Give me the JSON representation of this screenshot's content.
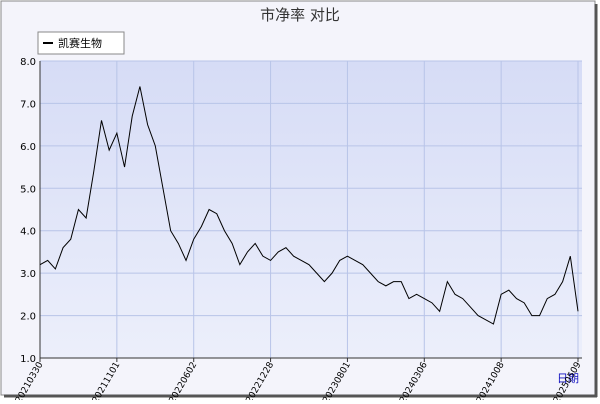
{
  "chart_data": {
    "type": "line",
    "title": "市净率 对比",
    "x_label": "日期",
    "categories": [
      "20210330",
      null,
      null,
      null,
      null,
      null,
      null,
      null,
      null,
      null,
      "20211101",
      null,
      null,
      null,
      null,
      null,
      null,
      null,
      null,
      null,
      "20220602",
      null,
      null,
      null,
      null,
      null,
      null,
      null,
      null,
      null,
      "20221228",
      null,
      null,
      null,
      null,
      null,
      null,
      null,
      null,
      null,
      "20230801",
      null,
      null,
      null,
      null,
      null,
      null,
      null,
      null,
      null,
      "20240306",
      null,
      null,
      null,
      null,
      null,
      null,
      null,
      null,
      null,
      "20241008",
      null,
      null,
      null,
      null,
      null,
      null,
      null,
      null,
      null,
      "20250509"
    ],
    "series": [
      {
        "name": "凯赛生物",
        "color": "#000000",
        "values": [
          3.2,
          3.3,
          3.1,
          3.6,
          3.8,
          4.5,
          4.3,
          5.4,
          6.6,
          5.9,
          6.3,
          5.5,
          6.7,
          7.4,
          6.5,
          6.0,
          5.0,
          4.0,
          3.7,
          3.3,
          3.8,
          4.1,
          4.5,
          4.4,
          4.0,
          3.7,
          3.2,
          3.5,
          3.7,
          3.4,
          3.3,
          3.5,
          3.6,
          3.4,
          3.3,
          3.2,
          3.0,
          2.8,
          3.0,
          3.3,
          3.4,
          3.3,
          3.2,
          3.0,
          2.8,
          2.7,
          2.8,
          2.8,
          2.4,
          2.5,
          2.4,
          2.3,
          2.1,
          2.8,
          2.5,
          2.4,
          2.2,
          2.0,
          1.9,
          1.8,
          2.5,
          2.6,
          2.4,
          2.3,
          2.0,
          2.0,
          2.4,
          2.5,
          2.8,
          3.4,
          2.1
        ]
      }
    ],
    "ylim": [
      1.0,
      8.0
    ],
    "yticks": [
      {
        "value": 1,
        "label": "1.0"
      },
      {
        "value": 2,
        "label": "2.0"
      },
      {
        "value": 3,
        "label": "3.0"
      },
      {
        "value": 4,
        "label": "4.0"
      },
      {
        "value": 5,
        "label": "5.0"
      },
      {
        "value": 6,
        "label": "6.0"
      },
      {
        "value": 7,
        "label": "7.0"
      },
      {
        "value": 8,
        "label": "8.0"
      }
    ],
    "grid": true
  }
}
